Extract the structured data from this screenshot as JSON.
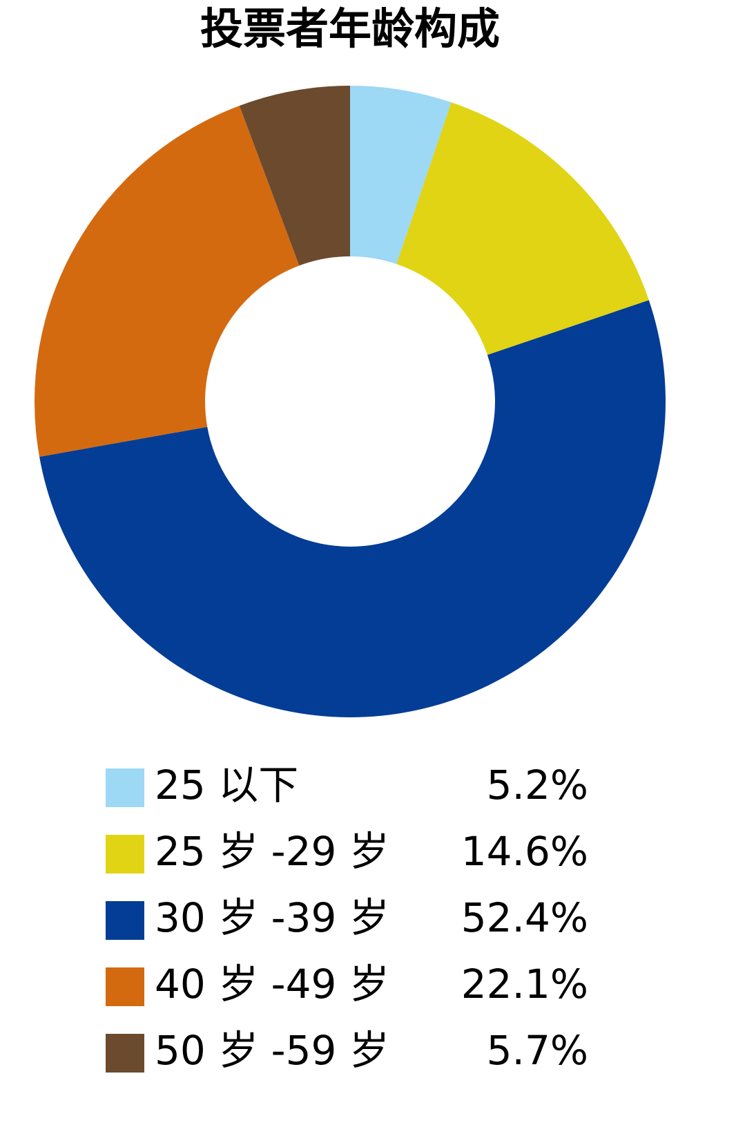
{
  "chart_data": {
    "type": "donut",
    "title": "投票者年龄构成",
    "categories": [
      "25 以下",
      "25 岁 -29 岁",
      "30 岁 -39 岁",
      "40 岁 -49 岁",
      "50 岁 -59 岁"
    ],
    "values": [
      5.2,
      14.6,
      52.4,
      22.1,
      5.7
    ],
    "value_labels": [
      "5.2%",
      "14.6%",
      "52.4%",
      "22.1%",
      "5.7%"
    ],
    "colors": [
      "#9dd8f4",
      "#e0d414",
      "#043d96",
      "#d36a10",
      "#6b4a2e"
    ]
  }
}
